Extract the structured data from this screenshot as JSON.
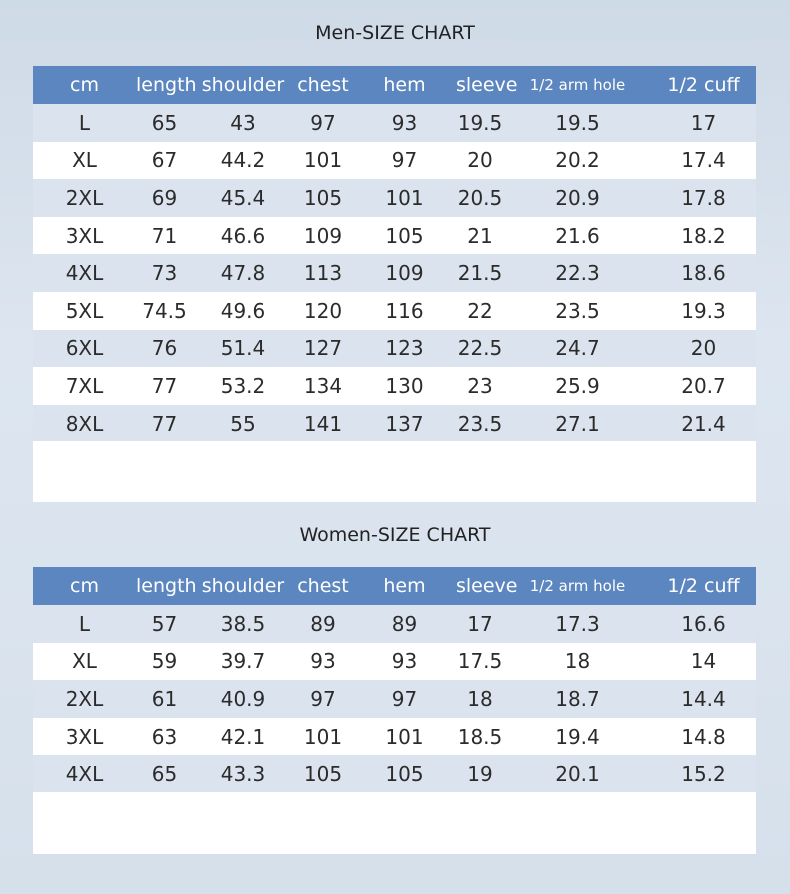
{
  "men": {
    "title": "Men-SIZE  CHART",
    "headers": [
      "cm",
      "length",
      "shoulder",
      "chest",
      "hem",
      "sleeve",
      "1/2 arm hole",
      "1/2 cuff"
    ],
    "rows": [
      [
        "L",
        "65",
        "43",
        "97",
        "93",
        "19.5",
        "19.5",
        "17"
      ],
      [
        "XL",
        "67",
        "44.2",
        "101",
        "97",
        "20",
        "20.2",
        "17.4"
      ],
      [
        "2XL",
        "69",
        "45.4",
        "105",
        "101",
        "20.5",
        "20.9",
        "17.8"
      ],
      [
        "3XL",
        "71",
        "46.6",
        "109",
        "105",
        "21",
        "21.6",
        "18.2"
      ],
      [
        "4XL",
        "73",
        "47.8",
        "113",
        "109",
        "21.5",
        "22.3",
        "18.6"
      ],
      [
        "5XL",
        "74.5",
        "49.6",
        "120",
        "116",
        "22",
        "23.5",
        "19.3"
      ],
      [
        "6XL",
        "76",
        "51.4",
        "127",
        "123",
        "22.5",
        "24.7",
        "20"
      ],
      [
        "7XL",
        "77",
        "53.2",
        "134",
        "130",
        "23",
        "25.9",
        "20.7"
      ],
      [
        "8XL",
        "77",
        "55",
        "141",
        "137",
        "23.5",
        "27.1",
        "21.4"
      ]
    ]
  },
  "women": {
    "title": "Women-SIZE CHART",
    "headers": [
      "cm",
      "length",
      "shoulder",
      "chest",
      "hem",
      "sleeve",
      "1/2 arm hole",
      "1/2 cuff"
    ],
    "rows": [
      [
        "L",
        "57",
        "38.5",
        "89",
        "89",
        "17",
        "17.3",
        "16.6"
      ],
      [
        "XL",
        "59",
        "39.7",
        "93",
        "93",
        "17.5",
        "18",
        "14"
      ],
      [
        "2XL",
        "61",
        "40.9",
        "97",
        "97",
        "18",
        "18.7",
        "14.4"
      ],
      [
        "3XL",
        "63",
        "42.1",
        "101",
        "101",
        "18.5",
        "19.4",
        "14.8"
      ],
      [
        "4XL",
        "65",
        "43.3",
        "105",
        "105",
        "19",
        "20.1",
        "15.2"
      ]
    ]
  },
  "colors": {
    "header_bg": "#5c86bf",
    "row_white": "#ffffff",
    "row_tint": "#dbe4ee",
    "page_bg": "#d3dde9"
  }
}
